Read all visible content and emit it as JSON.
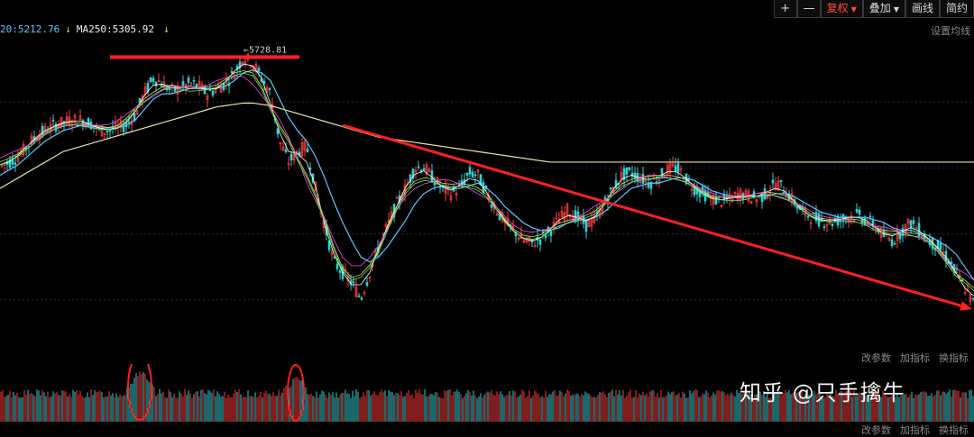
{
  "toolbar": {
    "plus_icon": "plus-icon",
    "minus_icon": "minus-icon",
    "plus_glyph": "+",
    "minus_glyph": "—",
    "adjust": "复权",
    "overlay": "叠加",
    "draw": "画线",
    "simple": "简约"
  },
  "legend": {
    "ma20": "20:5212.76",
    "ma250": "MA250:5305.92"
  },
  "settings_link": "设置均线",
  "indicator_links": {
    "change_params": "改参数",
    "add_indicator": "加指标",
    "switch_indicator": "换指标"
  },
  "bottom_links": {
    "change_params": "改参数",
    "add_indicator": "加指标",
    "switch_indicator": "换指标"
  },
  "watermark": "知乎 @只手擒牛",
  "colors": {
    "background": "#000000",
    "up_candle": "#ff3b3b",
    "down_candle": "#33d0d6",
    "annotation": "#ff2020",
    "ma20": "#5ec8ff",
    "ma250": "#e8e2a8"
  },
  "chart_data": {
    "type": "line",
    "high_label": "5728.81",
    "grid": true,
    "price_series": {
      "x": [
        0,
        10,
        20,
        30,
        40,
        50,
        60,
        70,
        80,
        90,
        100,
        110,
        120,
        130,
        140,
        150,
        160,
        170,
        180,
        190,
        200,
        210,
        220,
        230,
        240,
        250,
        260,
        270,
        280,
        290,
        300,
        310,
        320,
        330,
        340,
        350,
        360,
        370,
        380,
        390,
        400,
        410,
        420,
        430,
        440,
        450,
        460,
        470,
        480,
        490,
        500,
        510,
        520,
        530,
        540,
        550,
        560,
        570,
        580,
        590,
        600,
        610,
        620,
        630,
        640,
        650,
        660,
        670,
        680,
        690,
        700,
        710,
        720,
        730,
        740,
        750,
        760,
        770,
        780,
        790,
        800,
        810,
        820,
        830,
        840,
        850,
        860,
        870,
        880,
        890,
        900,
        910,
        920,
        930,
        940,
        950,
        960,
        970,
        980,
        990,
        1000,
        1010,
        1020,
        1030,
        1040,
        1050,
        1060,
        1070,
        1080
      ],
      "y": [
        5280,
        5300,
        5320,
        5360,
        5400,
        5420,
        5440,
        5450,
        5460,
        5460,
        5450,
        5420,
        5420,
        5430,
        5440,
        5480,
        5560,
        5620,
        5600,
        5570,
        5580,
        5600,
        5590,
        5560,
        5580,
        5600,
        5640,
        5700,
        5680,
        5620,
        5560,
        5380,
        5300,
        5340,
        5360,
        5200,
        5060,
        4920,
        4880,
        4840,
        4780,
        4880,
        4980,
        5060,
        5140,
        5200,
        5280,
        5280,
        5240,
        5200,
        5180,
        5200,
        5260,
        5250,
        5180,
        5120,
        5070,
        5040,
        5000,
        4990,
        5010,
        5040,
        5080,
        5120,
        5090,
        5060,
        5080,
        5140,
        5200,
        5250,
        5260,
        5240,
        5220,
        5240,
        5270,
        5280,
        5240,
        5200,
        5180,
        5160,
        5150,
        5160,
        5180,
        5170,
        5160,
        5180,
        5220,
        5200,
        5150,
        5110,
        5090,
        5080,
        5070,
        5080,
        5090,
        5100,
        5080,
        5060,
        5020,
        5000,
        5040,
        5070,
        5040,
        5000,
        4980,
        4940,
        4880,
        4820,
        4760
      ]
    },
    "ma20": {
      "name": "20",
      "y": [
        5250,
        5270,
        5290,
        5320,
        5350,
        5380,
        5400,
        5420,
        5430,
        5440,
        5440,
        5430,
        5430,
        5430,
        5440,
        5460,
        5500,
        5540,
        5560,
        5560,
        5570,
        5580,
        5580,
        5580,
        5580,
        5590,
        5610,
        5640,
        5650,
        5640,
        5610,
        5540,
        5470,
        5420,
        5380,
        5320,
        5240,
        5150,
        5070,
        5000,
        4940,
        4920,
        4940,
        4980,
        5030,
        5080,
        5140,
        5180,
        5200,
        5210,
        5200,
        5200,
        5210,
        5220,
        5200,
        5170,
        5130,
        5100,
        5070,
        5050,
        5040,
        5040,
        5050,
        5070,
        5080,
        5080,
        5090,
        5110,
        5140,
        5170,
        5200,
        5210,
        5220,
        5220,
        5230,
        5240,
        5240,
        5230,
        5210,
        5190,
        5180,
        5170,
        5170,
        5170,
        5170,
        5170,
        5180,
        5180,
        5170,
        5150,
        5130,
        5110,
        5100,
        5090,
        5090,
        5090,
        5090,
        5080,
        5070,
        5050,
        5040,
        5040,
        5030,
        5020,
        5000,
        4980,
        4950,
        4900,
        4850
      ]
    },
    "ma250": {
      "name": "MA250",
      "y": [
        5200,
        5220,
        5240,
        5260,
        5280,
        5300,
        5320,
        5340,
        5350,
        5360,
        5370,
        5380,
        5390,
        5400,
        5410,
        5420,
        5430,
        5440,
        5450,
        5460,
        5470,
        5480,
        5490,
        5500,
        5510,
        5515,
        5520,
        5525,
        5525,
        5520,
        5515,
        5505,
        5495,
        5485,
        5475,
        5465,
        5455,
        5445,
        5435,
        5425,
        5415,
        5405,
        5395,
        5390,
        5385,
        5380,
        5375,
        5370,
        5365,
        5360,
        5355,
        5350,
        5345,
        5340,
        5335,
        5330,
        5325,
        5320,
        5315,
        5310,
        5305,
        5300,
        5300,
        5300,
        5300,
        5300,
        5300,
        5300,
        5300,
        5300,
        5300,
        5300,
        5300,
        5300,
        5300,
        5300,
        5300,
        5300,
        5300,
        5300,
        5300,
        5300,
        5300,
        5300,
        5300,
        5300,
        5300,
        5300,
        5300,
        5300,
        5300,
        5300,
        5300,
        5300,
        5300,
        5300,
        5300,
        5300,
        5300,
        5300,
        5300,
        5300,
        5300,
        5300,
        5300,
        5300,
        5300,
        5300,
        5300
      ]
    },
    "ylim": [
      4600,
      5780
    ],
    "volume": {
      "ylim": [
        0,
        1
      ],
      "peaks": [
        {
          "x": 155,
          "value": 0.95
        },
        {
          "x": 328,
          "value": 0.6
        }
      ]
    },
    "annotations": {
      "top_bar": {
        "x": [
          122,
          332
        ],
        "y": 5700
      },
      "trend_arrow": {
        "x": [
          380,
          1078
        ],
        "y": [
          5440,
          4740
        ]
      }
    }
  }
}
